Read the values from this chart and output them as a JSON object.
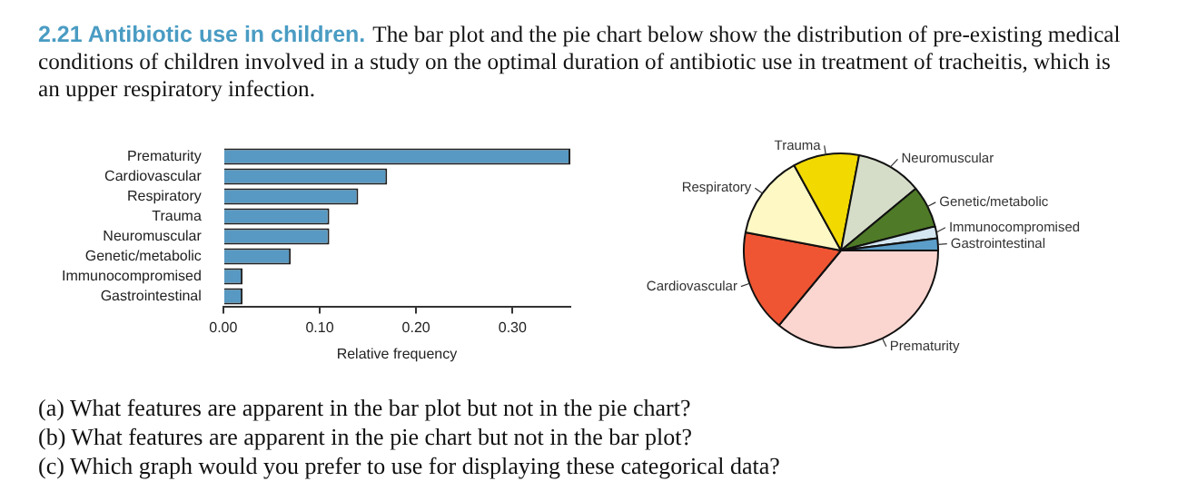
{
  "chart_data": [
    {
      "type": "bar",
      "orientation": "horizontal",
      "title": "2.21 Antibiotic use in children.",
      "subtitle": "The bar plot and the pie chart below show the distribution of pre-existing medical conditions of children involved in a study on the optimal duration of antibiotic use in treatment of tracheitis, which is an upper respiratory infection.",
      "categories": [
        "Prematurity",
        "Cardiovascular",
        "Respiratory",
        "Trauma",
        "Neuromuscular",
        "Genetic/metabolic",
        "Immunocompromised",
        "Gastrointestinal"
      ],
      "values": [
        0.36,
        0.17,
        0.14,
        0.11,
        0.11,
        0.07,
        0.02,
        0.02
      ],
      "color": "#5799c2",
      "xlim": [
        0,
        0.36
      ],
      "xticks": [
        {
          "value": 0,
          "label": "0.00"
        },
        {
          "value": 0.1,
          "label": "0.10"
        },
        {
          "value": 0.2,
          "label": "0.20"
        },
        {
          "value": 0.3,
          "label": "0.30"
        }
      ],
      "xlabel": "Relative frequency"
    },
    {
      "type": "pie",
      "categories": [
        "Prematurity",
        "Cardiovascular",
        "Respiratory",
        "Trauma",
        "Neuromuscular",
        "Genetic/metabolic",
        "Immunocompromised",
        "Gastrointestinal"
      ],
      "values": [
        36,
        17,
        14,
        11,
        11,
        7,
        2,
        2
      ],
      "colors": [
        "#fbd5cf",
        "#ef5533",
        "#fdf8c4",
        "#f2d900",
        "#d5dcc8",
        "#4f7a28",
        "#d4e6f1",
        "#5b9ec9"
      ],
      "annotations": [
        "(a) What features are apparent in the bar plot but not in the pie chart?",
        "(b) What features are apparent in the pie chart but not in the bar plot?",
        "(c) Which graph would you prefer to use for displaying these categorical data?"
      ]
    }
  ]
}
